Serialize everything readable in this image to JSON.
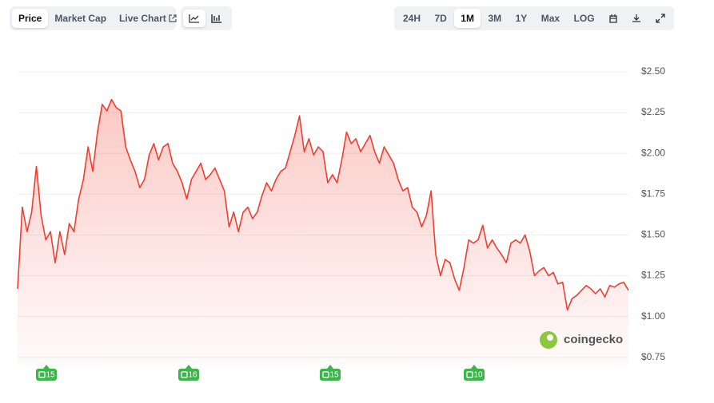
{
  "toolbar": {
    "views": [
      "Price",
      "Market Cap",
      "Live Chart"
    ],
    "ranges": [
      "24H",
      "7D",
      "1M",
      "3M",
      "1Y",
      "Max",
      "LOG"
    ]
  },
  "watermark": "coingecko",
  "chart_data": {
    "type": "line",
    "color": "#f23d2f",
    "grid": true,
    "ylim": [
      0.7,
      2.6
    ],
    "yticks": [
      {
        "value": 0.75,
        "label": "$0.75"
      },
      {
        "value": 1.0,
        "label": "$1.00"
      },
      {
        "value": 1.25,
        "label": "$1.25"
      },
      {
        "value": 1.5,
        "label": "$1.50"
      },
      {
        "value": 1.75,
        "label": "$1.75"
      },
      {
        "value": 2.0,
        "label": "$2.00"
      },
      {
        "value": 2.25,
        "label": "$2.25"
      },
      {
        "value": 2.5,
        "label": "$2.50"
      }
    ],
    "values": [
      1.17,
      1.67,
      1.52,
      1.64,
      1.92,
      1.62,
      1.47,
      1.52,
      1.33,
      1.52,
      1.38,
      1.57,
      1.52,
      1.72,
      1.84,
      2.04,
      1.89,
      2.13,
      2.3,
      2.26,
      2.33,
      2.28,
      2.26,
      2.04,
      1.96,
      1.89,
      1.79,
      1.84,
      1.99,
      2.06,
      1.96,
      2.04,
      2.06,
      1.94,
      1.89,
      1.82,
      1.72,
      1.84,
      1.89,
      1.94,
      1.84,
      1.87,
      1.91,
      1.84,
      1.77,
      1.55,
      1.64,
      1.52,
      1.64,
      1.67,
      1.6,
      1.64,
      1.74,
      1.82,
      1.77,
      1.84,
      1.89,
      1.91,
      2.01,
      2.11,
      2.23,
      2.01,
      2.09,
      1.99,
      2.04,
      2.01,
      1.82,
      1.87,
      1.82,
      1.96,
      2.13,
      2.06,
      2.09,
      2.01,
      2.06,
      2.11,
      2.01,
      1.94,
      2.04,
      1.99,
      1.94,
      1.84,
      1.77,
      1.79,
      1.67,
      1.64,
      1.55,
      1.62,
      1.77,
      1.38,
      1.25,
      1.35,
      1.33,
      1.23,
      1.16,
      1.3,
      1.47,
      1.45,
      1.47,
      1.56,
      1.42,
      1.47,
      1.42,
      1.38,
      1.33,
      1.45,
      1.47,
      1.45,
      1.5,
      1.4,
      1.25,
      1.28,
      1.3,
      1.25,
      1.27,
      1.2,
      1.21,
      1.04,
      1.11,
      1.13,
      1.16,
      1.19,
      1.17,
      1.14,
      1.17,
      1.12,
      1.19,
      1.18,
      1.2,
      1.21,
      1.16
    ],
    "events": [
      15,
      16,
      15,
      10
    ]
  }
}
